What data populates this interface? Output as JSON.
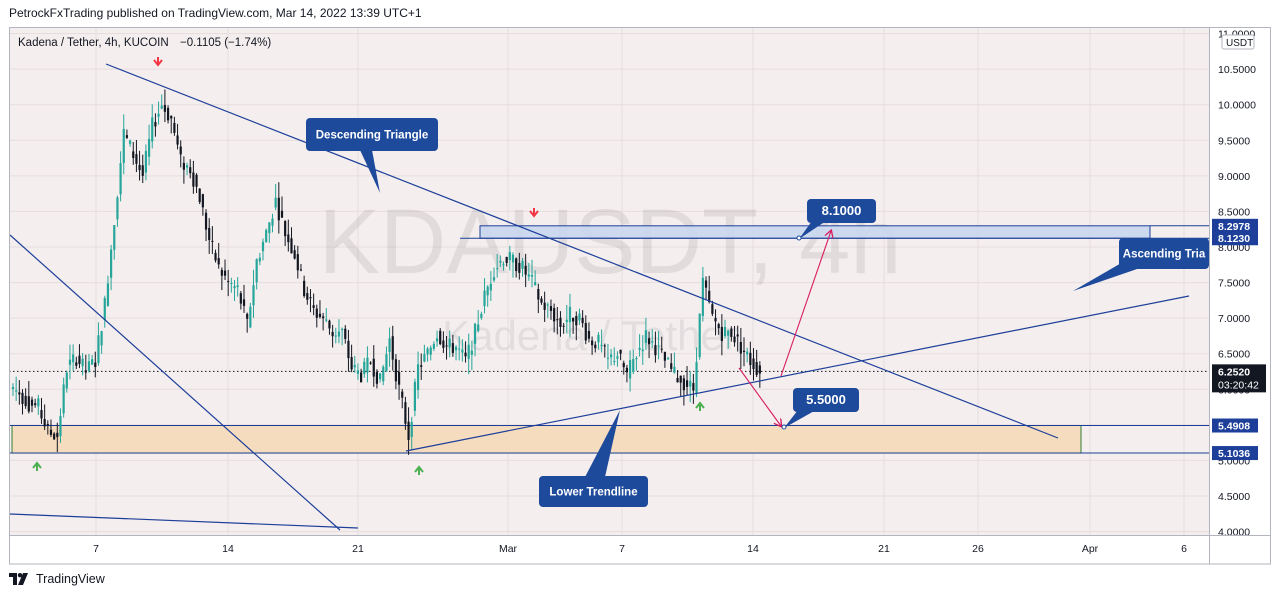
{
  "header": {
    "published": "PetrockFxTrading published on TradingView.com, Mar 14, 2022 13:39 UTC+1"
  },
  "footer": {
    "brand": "TradingView"
  },
  "legend": {
    "symbol": "Kadena / Tether, 4h, KUCOIN",
    "change": "−0.1105 (−1.74%)"
  },
  "watermark": {
    "ticker": "KDAUSDT, 4h",
    "name": "Kadena / Tether"
  },
  "colors": {
    "up": "#26a69a",
    "down": "#131722",
    "trendline": "#1d3f9a",
    "callout": "#1e4a9c",
    "supply_zone": "#c8d6ee",
    "demand_zone": "#f5dcbe",
    "arrow": "#d81b60",
    "marker_up": "#4caf50",
    "marker_down": "#f23645"
  },
  "chart_data": {
    "type": "candlestick",
    "timeframe": "4h",
    "currency_badge": "USDT",
    "y_ticks": [
      "11.0000",
      "10.5000",
      "10.0000",
      "9.5000",
      "9.0000",
      "8.5000",
      "8.0000",
      "7.5000",
      "7.0000",
      "6.5000",
      "6.0000",
      "5.5000",
      "5.0000",
      "4.5000",
      "4.0000"
    ],
    "x_ticks": [
      "7",
      "14",
      "21",
      "Mar",
      "7",
      "14",
      "21",
      "26",
      "Apr",
      "6"
    ],
    "ylim": [
      3.98,
      11.05
    ],
    "price_labels": {
      "supply_top": "8.2978",
      "supply_bottom": "8.1230",
      "last_price": "6.2520",
      "countdown": "03:20:42",
      "demand_top": "5.4908",
      "demand_bottom": "5.1036"
    },
    "annotations": {
      "descending_triangle": "Descending Triangle",
      "ascending_triangle": "Ascending Tria",
      "lower_trendline": "Lower Trendline",
      "target_up": "8.1000",
      "target_down": "5.5000"
    },
    "series": [
      {
        "values": [
          5.95,
          5.8,
          5.75,
          5.4,
          5.35,
          6.3,
          6.45,
          6.25,
          6.4,
          7.2,
          8.4,
          9.6,
          9.3,
          9.0,
          9.7,
          10.0,
          9.8,
          9.2,
          9.1,
          8.7,
          8.1,
          7.7,
          7.5,
          7.4,
          6.9,
          7.8,
          8.2,
          8.65,
          8.2,
          7.9,
          7.4,
          7.1,
          7.0,
          6.8,
          6.8,
          6.3,
          6.2,
          6.4,
          6.1,
          6.7,
          6.0,
          5.35,
          6.3,
          6.5,
          6.8,
          6.6,
          6.6,
          6.4,
          6.8,
          7.3,
          7.7,
          7.85,
          7.8,
          7.7,
          7.5,
          7.2,
          7.1,
          6.9,
          7.05,
          7.0,
          6.7,
          6.65,
          6.4,
          6.5,
          6.2,
          6.5,
          6.75,
          6.6,
          6.4,
          6.2,
          6.1,
          6.0,
          7.5,
          7.0,
          6.8,
          6.8,
          6.6,
          6.4,
          6.25
        ]
      }
    ]
  }
}
